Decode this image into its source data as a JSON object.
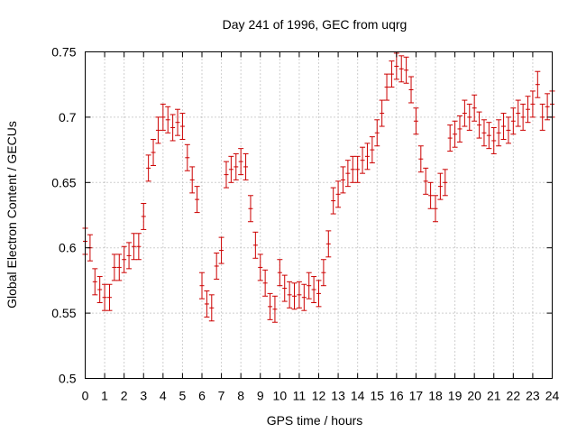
{
  "chart_data": {
    "type": "scatter",
    "title": "Day 241 of 1996, GEC from uqrg",
    "xlabel": "GPS time / hours",
    "ylabel": "Global Electron Content / GECUs",
    "xlim": [
      0,
      24
    ],
    "ylim": [
      0.5,
      0.75
    ],
    "xticks": [
      0,
      1,
      2,
      3,
      4,
      5,
      6,
      7,
      8,
      9,
      10,
      11,
      12,
      13,
      14,
      15,
      16,
      17,
      18,
      19,
      20,
      21,
      22,
      23,
      24
    ],
    "yticks": [
      0.5,
      0.55,
      0.6,
      0.65,
      0.7,
      0.75
    ],
    "ytick_labels": [
      "0.5",
      "0.55",
      "0.6",
      "0.65",
      "0.7",
      "0.75"
    ],
    "grid": true,
    "error_bar_halfwidth": 0.01,
    "series": [
      {
        "color": "#cc0000",
        "points": [
          [
            0.0,
            0.605
          ],
          [
            0.25,
            0.6
          ],
          [
            0.5,
            0.574
          ],
          [
            0.75,
            0.568
          ],
          [
            1.0,
            0.562
          ],
          [
            1.25,
            0.562
          ],
          [
            1.5,
            0.585
          ],
          [
            1.75,
            0.585
          ],
          [
            2.0,
            0.591
          ],
          [
            2.25,
            0.594
          ],
          [
            2.5,
            0.601
          ],
          [
            2.75,
            0.601
          ],
          [
            3.0,
            0.624
          ],
          [
            3.25,
            0.661
          ],
          [
            3.5,
            0.673
          ],
          [
            3.75,
            0.69
          ],
          [
            4.0,
            0.7
          ],
          [
            4.25,
            0.698
          ],
          [
            4.5,
            0.692
          ],
          [
            4.75,
            0.696
          ],
          [
            5.0,
            0.693
          ],
          [
            5.25,
            0.669
          ],
          [
            5.5,
            0.652
          ],
          [
            5.75,
            0.637
          ],
          [
            6.0,
            0.571
          ],
          [
            6.25,
            0.557
          ],
          [
            6.5,
            0.554
          ],
          [
            6.75,
            0.586
          ],
          [
            7.0,
            0.598
          ],
          [
            7.25,
            0.656
          ],
          [
            7.5,
            0.66
          ],
          [
            7.75,
            0.662
          ],
          [
            8.0,
            0.666
          ],
          [
            8.25,
            0.662
          ],
          [
            8.5,
            0.63
          ],
          [
            8.75,
            0.602
          ],
          [
            9.0,
            0.585
          ],
          [
            9.25,
            0.573
          ],
          [
            9.5,
            0.555
          ],
          [
            9.75,
            0.553
          ],
          [
            10.0,
            0.581
          ],
          [
            10.25,
            0.569
          ],
          [
            10.5,
            0.564
          ],
          [
            10.75,
            0.563
          ],
          [
            11.0,
            0.564
          ],
          [
            11.25,
            0.562
          ],
          [
            11.5,
            0.571
          ],
          [
            11.75,
            0.568
          ],
          [
            12.0,
            0.565
          ],
          [
            12.25,
            0.581
          ],
          [
            12.5,
            0.603
          ],
          [
            12.75,
            0.636
          ],
          [
            13.0,
            0.641
          ],
          [
            13.25,
            0.652
          ],
          [
            13.5,
            0.657
          ],
          [
            13.75,
            0.66
          ],
          [
            14.0,
            0.66
          ],
          [
            14.25,
            0.667
          ],
          [
            14.5,
            0.67
          ],
          [
            14.75,
            0.675
          ],
          [
            15.0,
            0.688
          ],
          [
            15.25,
            0.703
          ],
          [
            15.5,
            0.723
          ],
          [
            15.75,
            0.733
          ],
          [
            16.0,
            0.739
          ],
          [
            16.25,
            0.737
          ],
          [
            16.5,
            0.736
          ],
          [
            16.75,
            0.721
          ],
          [
            17.0,
            0.697
          ],
          [
            17.25,
            0.668
          ],
          [
            17.5,
            0.651
          ],
          [
            17.75,
            0.64
          ],
          [
            18.0,
            0.63
          ],
          [
            18.25,
            0.647
          ],
          [
            18.5,
            0.65
          ],
          [
            18.75,
            0.684
          ],
          [
            19.0,
            0.687
          ],
          [
            19.25,
            0.691
          ],
          [
            19.5,
            0.703
          ],
          [
            19.75,
            0.7
          ],
          [
            20.0,
            0.707
          ],
          [
            20.25,
            0.694
          ],
          [
            20.5,
            0.688
          ],
          [
            20.75,
            0.686
          ],
          [
            21.0,
            0.682
          ],
          [
            21.25,
            0.688
          ],
          [
            21.5,
            0.693
          ],
          [
            21.75,
            0.69
          ],
          [
            22.0,
            0.697
          ],
          [
            22.25,
            0.703
          ],
          [
            22.5,
            0.7
          ],
          [
            22.75,
            0.706
          ],
          [
            23.0,
            0.71
          ],
          [
            23.25,
            0.725
          ],
          [
            23.5,
            0.7
          ],
          [
            23.75,
            0.708
          ],
          [
            24.0,
            0.71
          ]
        ]
      }
    ]
  }
}
